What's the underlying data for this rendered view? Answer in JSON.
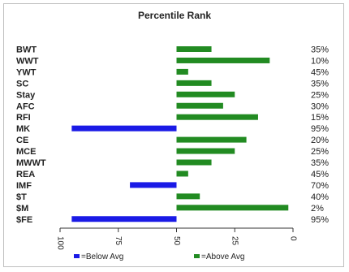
{
  "chart_data": {
    "type": "bar",
    "title": "Percentile Rank",
    "categories": [
      "BWT",
      "WWT",
      "YWT",
      "SC",
      "Stay",
      "AFC",
      "RFI",
      "MK",
      "CE",
      "MCE",
      "MWWT",
      "REA",
      "IMF",
      "$T",
      "$M",
      "$FE"
    ],
    "values": [
      35,
      10,
      45,
      35,
      25,
      30,
      15,
      95,
      20,
      25,
      35,
      45,
      70,
      40,
      2,
      95
    ],
    "value_labels": [
      "35%",
      "10%",
      "45%",
      "35%",
      "25%",
      "30%",
      "15%",
      "95%",
      "20%",
      "25%",
      "35%",
      "45%",
      "70%",
      "40%",
      "2%",
      "95%"
    ],
    "series": [
      {
        "name": "=Below Avg",
        "color": "#1a1ae6",
        "members": [
          "MK",
          "IMF",
          "$FE"
        ]
      },
      {
        "name": "=Above Avg",
        "color": "#228b22",
        "members": [
          "BWT",
          "WWT",
          "YWT",
          "SC",
          "Stay",
          "AFC",
          "RFI",
          "CE",
          "MCE",
          "MWWT",
          "REA",
          "$T",
          "$M"
        ]
      }
    ],
    "x_axis": {
      "reversed": true,
      "range": [
        100,
        0
      ],
      "ticks": [
        100,
        75,
        50,
        25,
        0
      ],
      "tick_labels": [
        "100",
        "75",
        "50",
        "25",
        "0"
      ],
      "label_rotation": "90"
    },
    "reference_value": 50,
    "grid": false,
    "legend_position": "bottom"
  }
}
